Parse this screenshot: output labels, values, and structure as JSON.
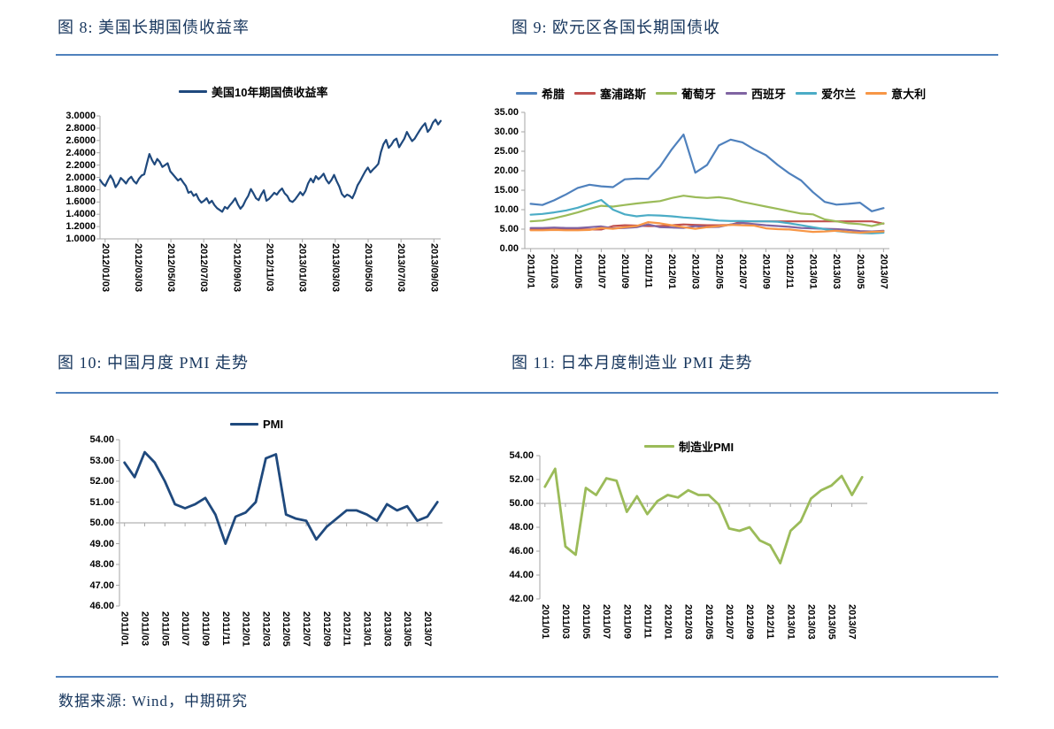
{
  "page": {
    "figures": [
      {
        "title": "图 8: 美国长期国债收益率"
      },
      {
        "title": "图 9: 欧元区各国长期国债收"
      },
      {
        "title": "图 10: 中国月度 PMI 走势"
      },
      {
        "title": "图 11: 日本月度制造业 PMI 走势"
      }
    ],
    "footer_text": "数据来源: Wind，中期研究",
    "colors": {
      "title_navy": "#17365D",
      "divider_blue": "#4F81BD",
      "axis_gray": "#A6A6A6"
    }
  },
  "chart_data": [
    {
      "type": "line",
      "title": "图 8: 美国长期国债收益率",
      "legend_position": "top",
      "ylim": [
        1.0,
        3.0
      ],
      "y_ticks": [
        "3.0000",
        "2.8000",
        "2.6000",
        "2.4000",
        "2.2000",
        "2.0000",
        "1.8000",
        "1.6000",
        "1.4000",
        "1.2000",
        "1.0000"
      ],
      "x_ticks": [
        "2012/01/03",
        "2012/03/03",
        "2012/05/03",
        "2012/07/03",
        "2012/09/03",
        "2012/11/03",
        "2013/01/03",
        "2013/03/03",
        "2013/05/03",
        "2013/07/03",
        "2013/09/03"
      ],
      "series": [
        {
          "name": "美国10年期国债收益率",
          "color": "#1F497D",
          "values": [
            1.96,
            1.9,
            1.86,
            1.95,
            2.03,
            1.96,
            1.84,
            1.9,
            1.99,
            1.95,
            1.9,
            1.97,
            2.01,
            1.94,
            1.9,
            1.98,
            2.03,
            2.05,
            2.22,
            2.38,
            2.28,
            2.21,
            2.3,
            2.25,
            2.17,
            2.2,
            2.23,
            2.1,
            2.05,
            2.0,
            1.95,
            1.98,
            1.92,
            1.86,
            1.75,
            1.77,
            1.7,
            1.73,
            1.64,
            1.59,
            1.62,
            1.66,
            1.58,
            1.62,
            1.55,
            1.5,
            1.47,
            1.44,
            1.52,
            1.49,
            1.55,
            1.6,
            1.66,
            1.56,
            1.49,
            1.54,
            1.63,
            1.7,
            1.81,
            1.74,
            1.66,
            1.63,
            1.72,
            1.79,
            1.62,
            1.65,
            1.7,
            1.75,
            1.72,
            1.78,
            1.82,
            1.74,
            1.7,
            1.62,
            1.6,
            1.64,
            1.7,
            1.76,
            1.71,
            1.78,
            1.9,
            1.98,
            1.92,
            2.02,
            1.97,
            2.01,
            2.06,
            1.96,
            1.9,
            1.96,
            2.04,
            1.94,
            1.85,
            1.73,
            1.68,
            1.72,
            1.7,
            1.66,
            1.75,
            1.87,
            1.94,
            2.02,
            2.1,
            2.16,
            2.08,
            2.13,
            2.17,
            2.22,
            2.41,
            2.54,
            2.61,
            2.48,
            2.53,
            2.6,
            2.63,
            2.49,
            2.56,
            2.63,
            2.74,
            2.66,
            2.59,
            2.63,
            2.7,
            2.77,
            2.83,
            2.88,
            2.74,
            2.79,
            2.89,
            2.94,
            2.86,
            2.92
          ]
        }
      ]
    },
    {
      "type": "line",
      "title": "图 9: 欧元区各国长期国债收",
      "legend_position": "top",
      "ylim": [
        0,
        35
      ],
      "y_ticks": [
        "35.00",
        "30.00",
        "25.00",
        "20.00",
        "15.00",
        "10.00",
        "5.00",
        "0.00"
      ],
      "x_ticks": [
        "2011/01",
        "2011/03",
        "2011/05",
        "2011/07",
        "2011/09",
        "2011/11",
        "2012/01",
        "2012/03",
        "2012/05",
        "2012/07",
        "2012/09",
        "2012/11",
        "2013/01",
        "2013/03",
        "2013/05",
        "2013/07"
      ],
      "series": [
        {
          "name": "希腊",
          "color": "#4F81BD",
          "values": [
            11.5,
            11.2,
            12.4,
            13.9,
            15.6,
            16.4,
            16.0,
            15.8,
            17.8,
            18.0,
            17.9,
            21.1,
            25.5,
            29.3,
            19.5,
            21.5,
            26.5,
            28.0,
            27.3,
            25.5,
            24.0,
            21.5,
            19.3,
            17.5,
            14.5,
            12.0,
            11.3,
            11.5,
            11.8,
            9.6,
            10.4
          ]
        },
        {
          "name": "塞浦路斯",
          "color": "#C0504D",
          "values": [
            4.9,
            4.9,
            4.9,
            4.9,
            4.9,
            4.9,
            4.9,
            5.8,
            6.0,
            5.9,
            5.8,
            5.8,
            6.0,
            6.2,
            6.1,
            6.0,
            6.0,
            6.1,
            7.0,
            7.0,
            7.0,
            7.0,
            7.0,
            7.0,
            7.0,
            7.0,
            7.0,
            7.0,
            7.0,
            7.0,
            6.4
          ]
        },
        {
          "name": "葡萄牙",
          "color": "#9BBB59",
          "values": [
            7.0,
            7.2,
            7.8,
            8.5,
            9.3,
            10.2,
            11.0,
            10.8,
            11.2,
            11.6,
            11.9,
            12.2,
            13.0,
            13.6,
            13.2,
            13.0,
            13.2,
            12.8,
            12.0,
            11.4,
            10.8,
            10.2,
            9.6,
            9.0,
            8.8,
            7.5,
            7.0,
            6.5,
            6.3,
            5.8,
            6.5
          ]
        },
        {
          "name": "西班牙",
          "color": "#8064A2",
          "values": [
            5.3,
            5.3,
            5.4,
            5.3,
            5.3,
            5.5,
            5.7,
            5.2,
            5.3,
            5.5,
            6.2,
            5.5,
            5.4,
            5.3,
            5.8,
            5.5,
            5.6,
            6.2,
            6.6,
            6.3,
            6.0,
            5.8,
            5.6,
            5.3,
            5.2,
            5.1,
            5.0,
            4.8,
            4.5,
            4.4,
            4.6
          ]
        },
        {
          "name": "爱尔兰",
          "color": "#4BACC6",
          "values": [
            8.7,
            8.9,
            9.3,
            9.8,
            10.5,
            11.5,
            12.5,
            10.0,
            8.8,
            8.3,
            8.6,
            8.5,
            8.3,
            8.0,
            7.8,
            7.5,
            7.2,
            7.1,
            7.1,
            7.0,
            7.0,
            6.9,
            6.5,
            6.0,
            5.5,
            5.0,
            4.5,
            4.2,
            4.0,
            3.9,
            4.1
          ]
        },
        {
          "name": "意大利",
          "color": "#F79646",
          "values": [
            4.7,
            4.7,
            4.8,
            4.7,
            4.7,
            4.8,
            5.3,
            5.1,
            5.5,
            5.8,
            6.8,
            6.5,
            6.0,
            5.5,
            5.1,
            5.5,
            5.8,
            6.1,
            6.0,
            5.9,
            5.2,
            5.0,
            4.9,
            4.6,
            4.3,
            4.4,
            4.6,
            4.3,
            4.1,
            4.3,
            4.4
          ]
        }
      ]
    },
    {
      "type": "line",
      "title": "图 10: 中国月度 PMI 走势",
      "legend_position": "top",
      "ylim": [
        46,
        54
      ],
      "axis_cross_y": 50,
      "y_ticks": [
        "54.00",
        "53.00",
        "52.00",
        "51.00",
        "50.00",
        "49.00",
        "48.00",
        "47.00",
        "46.00"
      ],
      "x_ticks": [
        "2011/01",
        "2011/03",
        "2011/05",
        "2011/07",
        "2011/09",
        "2011/11",
        "2012/01",
        "2012/03",
        "2012/05",
        "2012/07",
        "2012/09",
        "2012/11",
        "2013/01",
        "2013/03",
        "2013/05",
        "2013/07"
      ],
      "series": [
        {
          "name": "PMI",
          "color": "#1F497D",
          "values": [
            52.9,
            52.2,
            53.4,
            52.9,
            52.0,
            50.9,
            50.7,
            50.9,
            51.2,
            50.4,
            49.0,
            50.3,
            50.5,
            51.0,
            53.1,
            53.3,
            50.4,
            50.2,
            50.1,
            49.2,
            49.8,
            50.2,
            50.6,
            50.6,
            50.4,
            50.1,
            50.9,
            50.6,
            50.8,
            50.1,
            50.3,
            51.0
          ]
        }
      ]
    },
    {
      "type": "line",
      "title": "图 11: 日本月度制造业 PMI 走势",
      "legend_position": "top",
      "ylim": [
        42,
        54
      ],
      "axis_cross_y": 50,
      "y_ticks": [
        "54.00",
        "52.00",
        "50.00",
        "48.00",
        "46.00",
        "44.00",
        "42.00"
      ],
      "x_ticks": [
        "2011/01",
        "2011/03",
        "2011/05",
        "2011/07",
        "2011/09",
        "2011/11",
        "2012/01",
        "2012/03",
        "2012/05",
        "2012/07",
        "2012/09",
        "2012/11",
        "2013/01",
        "2013/03",
        "2013/05",
        "2013/07"
      ],
      "series": [
        {
          "name": "制造业PMI",
          "color": "#9BBB59",
          "values": [
            51.4,
            52.9,
            46.4,
            45.7,
            51.3,
            50.7,
            52.1,
            51.9,
            49.3,
            50.6,
            49.1,
            50.2,
            50.7,
            50.5,
            51.1,
            50.7,
            50.7,
            49.9,
            47.9,
            47.7,
            48.0,
            46.9,
            46.5,
            45.0,
            47.7,
            48.5,
            50.4,
            51.1,
            51.5,
            52.3,
            50.7,
            52.2
          ]
        }
      ]
    }
  ]
}
